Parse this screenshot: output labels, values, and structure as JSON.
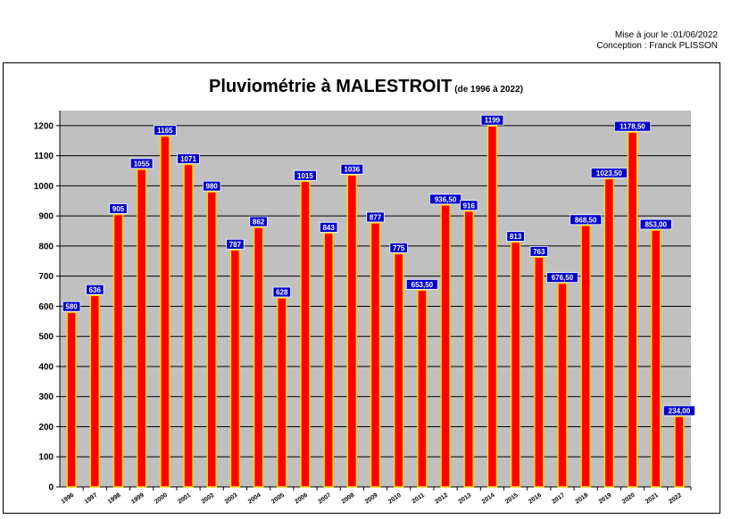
{
  "meta": {
    "updated": "Mise à jour le :01/06/2022",
    "author": "Conception : Franck PLISSON"
  },
  "chart_data": {
    "type": "bar",
    "title": "Pluviométrie à MALESTROIT",
    "subtitle": "(de 1996 à 2022)",
    "xlabel": "",
    "ylabel": "",
    "ylim": [
      0,
      1200
    ],
    "yticks": [
      0,
      100,
      200,
      300,
      400,
      500,
      600,
      700,
      800,
      900,
      1000,
      1100,
      1200
    ],
    "grid": true,
    "legend": "none",
    "colors": {
      "bar_fill": "#ff0000",
      "bar_border": "#ffd700",
      "plot_bg": "#c0c0c0",
      "label_bg": "#0000cc",
      "label_text": "#ffffff"
    },
    "categories": [
      "1996",
      "1997",
      "1998",
      "1999",
      "2000",
      "2001",
      "2002",
      "2003",
      "2004",
      "2005",
      "2006",
      "2007",
      "2008",
      "2009",
      "2010",
      "2011",
      "2012",
      "2013",
      "2014",
      "2015",
      "2016",
      "2017",
      "2018",
      "2019",
      "2020",
      "2021",
      "2022"
    ],
    "values": [
      580,
      636,
      905,
      1055,
      1165,
      1071,
      980,
      787,
      862,
      628,
      1015,
      843,
      1036,
      877,
      775,
      653.5,
      936.5,
      916,
      1199,
      813,
      763,
      676.5,
      868.5,
      1023.5,
      1178.5,
      853,
      234
    ],
    "data_labels": [
      "580",
      "636",
      "905",
      "1055",
      "1165",
      "1071",
      "980",
      "787",
      "862",
      "628",
      "1015",
      "843",
      "1036",
      "877",
      "775",
      "653,50",
      "936,50",
      "916",
      "1199",
      "813",
      "763",
      "676,50",
      "868,50",
      "1023,50",
      "1178,50",
      "853,00",
      "234,00"
    ]
  }
}
